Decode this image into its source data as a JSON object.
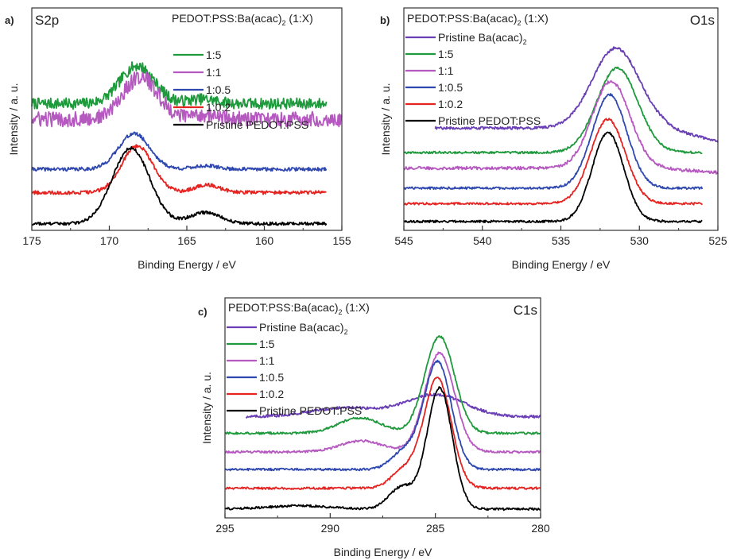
{
  "chart_data": [
    {
      "panel_label": "a)",
      "type": "line",
      "corner_label": "S2p",
      "legend_title": "PEDOT:PSS:Ba(acac)",
      "legend_title_sub": "2",
      "legend_title_suffix": " (1:X)",
      "xlabel": "Binding Energy / eV",
      "ylabel": "Intensity / a. u.",
      "xlim": [
        175,
        155
      ],
      "x_ticks": [
        175,
        170,
        165,
        160,
        155
      ],
      "legend_placement": "top-right",
      "series": [
        {
          "name": "1:5",
          "color": "#1e9a3c",
          "x_range": [
            175,
            156
          ],
          "baseline": 0.57,
          "noise": 0.025,
          "peaks": [
            {
              "center": 168.2,
              "width": 1.1,
              "height": 0.17
            },
            {
              "center": 164.0,
              "width": 0.9,
              "height": 0.02
            }
          ]
        },
        {
          "name": "1:1",
          "color": "#b558c0",
          "x_range": [
            175,
            155
          ],
          "baseline": 0.5,
          "noise": 0.035,
          "peaks": [
            {
              "center": 168.0,
              "width": 1.1,
              "height": 0.19
            },
            {
              "center": 164.0,
              "width": 0.9,
              "height": 0.02
            }
          ]
        },
        {
          "name": "1:0.5",
          "color": "#2f48b0",
          "x_range": [
            175,
            156
          ],
          "baseline": 0.275,
          "noise": 0.008,
          "peaks": [
            {
              "center": 168.4,
              "width": 1.0,
              "height": 0.16
            },
            {
              "center": 163.8,
              "width": 0.8,
              "height": 0.015
            }
          ]
        },
        {
          "name": "1:0.2",
          "color": "#e52421",
          "x_range": [
            175,
            156
          ],
          "baseline": 0.17,
          "noise": 0.008,
          "peaks": [
            {
              "center": 168.2,
              "width": 1.0,
              "height": 0.21
            },
            {
              "center": 163.7,
              "width": 0.8,
              "height": 0.035
            }
          ]
        },
        {
          "name": "Pristine PEDOT:PSS",
          "color": "#000000",
          "x_range": [
            175,
            156
          ],
          "baseline": 0.03,
          "noise": 0.007,
          "peaks": [
            {
              "center": 168.6,
              "width": 1.2,
              "height": 0.34
            },
            {
              "center": 163.8,
              "width": 1.0,
              "height": 0.05
            }
          ]
        }
      ]
    },
    {
      "panel_label": "b)",
      "type": "line",
      "corner_label": "O1s",
      "legend_title": "PEDOT:PSS:Ba(acac)",
      "legend_title_sub": "2",
      "legend_title_suffix": " (1:X)",
      "xlabel": "Binding Energy / eV",
      "ylabel": "Intensity / a. u.",
      "xlim": [
        545,
        525
      ],
      "x_ticks": [
        545,
        540,
        535,
        530,
        525
      ],
      "legend_placement": "top-left",
      "series": [
        {
          "name": "Pristine Ba(acac)",
          "name_sub": "2",
          "color": "#6a3fb5",
          "x_range": [
            543,
            525
          ],
          "baseline": 0.46,
          "noise": 0.006,
          "peaks": [
            {
              "center": 531.5,
              "width": 1.5,
              "height": 0.36
            }
          ],
          "end_drop": 0.06
        },
        {
          "name": "1:5",
          "color": "#1e9a3c",
          "x_range": [
            545,
            526
          ],
          "baseline": 0.35,
          "noise": 0.005,
          "peaks": [
            {
              "center": 531.4,
              "width": 1.3,
              "height": 0.38
            }
          ]
        },
        {
          "name": "1:1",
          "color": "#b558c0",
          "x_range": [
            545,
            525
          ],
          "baseline": 0.28,
          "noise": 0.007,
          "peaks": [
            {
              "center": 531.8,
              "width": 1.2,
              "height": 0.39
            }
          ],
          "end_drop": 0.02
        },
        {
          "name": "1:0.5",
          "color": "#2f48b0",
          "x_range": [
            545,
            526
          ],
          "baseline": 0.19,
          "noise": 0.005,
          "peaks": [
            {
              "center": 531.9,
              "width": 1.1,
              "height": 0.42
            }
          ]
        },
        {
          "name": "1:0.2",
          "color": "#e52421",
          "x_range": [
            545,
            526
          ],
          "baseline": 0.12,
          "noise": 0.005,
          "peaks": [
            {
              "center": 532.0,
              "width": 1.1,
              "height": 0.38
            }
          ]
        },
        {
          "name": "Pristine PEDOT:PSS",
          "color": "#000000",
          "x_range": [
            545,
            526
          ],
          "baseline": 0.04,
          "noise": 0.005,
          "peaks": [
            {
              "center": 532.0,
              "width": 1.0,
              "height": 0.4
            }
          ]
        }
      ]
    },
    {
      "panel_label": "c)",
      "type": "line",
      "corner_label": "C1s",
      "legend_title": "PEDOT:PSS:Ba(acac)",
      "legend_title_sub": "2",
      "legend_title_suffix": " (1:X)",
      "xlabel": "Binding Energy / eV",
      "ylabel": "Intensity / a. u.",
      "xlim": [
        295,
        280
      ],
      "x_ticks": [
        295,
        290,
        285,
        280
      ],
      "legend_placement": "top-left",
      "series": [
        {
          "name": "Pristine Ba(acac)",
          "name_sub": "2",
          "color": "#6a3fb5",
          "x_range": [
            294,
            280
          ],
          "baseline": 0.46,
          "noise": 0.006,
          "peaks": [
            {
              "center": 289.3,
              "width": 1.6,
              "height": 0.04
            },
            {
              "center": 285.0,
              "width": 1.4,
              "height": 0.1
            }
          ]
        },
        {
          "name": "1:5",
          "color": "#1e9a3c",
          "x_range": [
            295,
            280
          ],
          "baseline": 0.385,
          "noise": 0.005,
          "peaks": [
            {
              "center": 288.6,
              "width": 1.0,
              "height": 0.07
            },
            {
              "center": 284.8,
              "width": 0.7,
              "height": 0.44
            }
          ]
        },
        {
          "name": "1:1",
          "color": "#b558c0",
          "x_range": [
            295,
            280
          ],
          "baseline": 0.3,
          "noise": 0.005,
          "peaks": [
            {
              "center": 288.5,
              "width": 1.0,
              "height": 0.05
            },
            {
              "center": 284.8,
              "width": 0.7,
              "height": 0.45
            }
          ]
        },
        {
          "name": "1:0.5",
          "color": "#2f48b0",
          "x_range": [
            295,
            280
          ],
          "baseline": 0.22,
          "noise": 0.005,
          "peaks": [
            {
              "center": 286.5,
              "width": 0.6,
              "height": 0.08
            },
            {
              "center": 284.9,
              "width": 0.65,
              "height": 0.49
            }
          ]
        },
        {
          "name": "1:0.2",
          "color": "#e52421",
          "x_range": [
            295,
            280
          ],
          "baseline": 0.135,
          "noise": 0.005,
          "peaks": [
            {
              "center": 286.5,
              "width": 0.6,
              "height": 0.08
            },
            {
              "center": 284.9,
              "width": 0.65,
              "height": 0.5
            }
          ]
        },
        {
          "name": "Pristine PEDOT:PSS",
          "color": "#000000",
          "x_range": [
            295,
            280
          ],
          "baseline": 0.04,
          "noise": 0.005,
          "peaks": [
            {
              "center": 291.5,
              "width": 1.5,
              "height": 0.015
            },
            {
              "center": 286.6,
              "width": 0.6,
              "height": 0.1
            },
            {
              "center": 284.8,
              "width": 0.6,
              "height": 0.55
            }
          ]
        }
      ]
    }
  ]
}
